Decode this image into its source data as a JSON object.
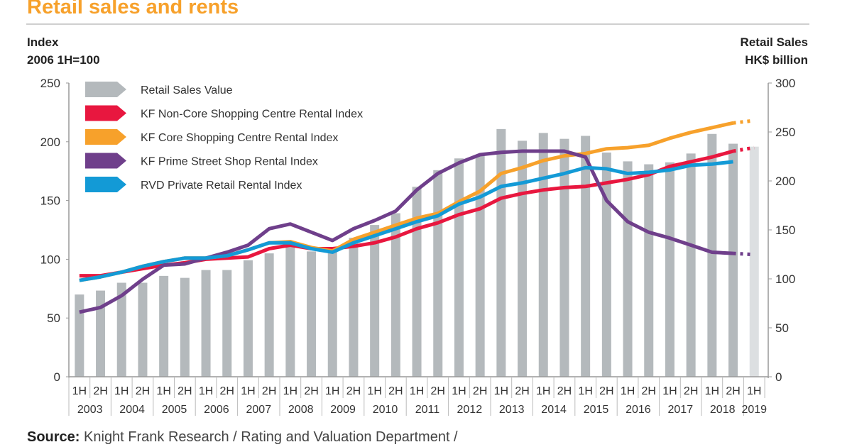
{
  "header": {
    "title": "Retail sales and rents",
    "left_axis_label_line1": "Index",
    "left_axis_label_line2": "2006 1H=100",
    "right_axis_label_line1": "Retail Sales",
    "right_axis_label_line2": "HK$ billion"
  },
  "footer": {
    "source_label": "Source:",
    "source_text": "Knight Frank Research / Rating and Valuation Department /"
  },
  "chart_data": {
    "type": "bar+line",
    "title": "Retail sales and rents",
    "categories": [
      "1H 2003",
      "2H 2003",
      "1H 2004",
      "2H 2004",
      "1H 2005",
      "2H 2005",
      "1H 2006",
      "2H 2006",
      "1H 2007",
      "2H 2007",
      "1H 2008",
      "2H 2008",
      "1H 2009",
      "2H 2009",
      "1H 2010",
      "2H 2010",
      "1H 2011",
      "2H 2011",
      "1H 2012",
      "2H 2012",
      "1H 2013",
      "2H 2013",
      "1H 2014",
      "2H 2014",
      "1H 2015",
      "2H 2015",
      "1H 2016",
      "2H 2016",
      "1H 2017",
      "2H 2017",
      "1H 2018",
      "2H 2018",
      "1H 2019"
    ],
    "half_labels": [
      "1H",
      "2H"
    ],
    "years": [
      "2003",
      "2004",
      "2005",
      "2006",
      "2007",
      "2008",
      "2009",
      "2010",
      "2011",
      "2012",
      "2013",
      "2014",
      "2015",
      "2016",
      "2017",
      "2018",
      "2019"
    ],
    "left_axis": {
      "label": "Index 2006 1H=100",
      "ylim": [
        0,
        250
      ],
      "ticks": [
        0,
        50,
        100,
        150,
        200,
        250
      ]
    },
    "right_axis": {
      "label": "Retail Sales HK$ billion",
      "ylim": [
        0,
        300
      ],
      "ticks": [
        0,
        50,
        100,
        150,
        200,
        250,
        300
      ]
    },
    "grid": false,
    "legend_placement": "top-left",
    "bars": {
      "name": "Retail Sales Value",
      "axis": "right",
      "color": "#b4b9bc",
      "forecast_color": "#dcdfe1",
      "values": [
        84,
        88,
        96,
        96,
        103,
        101,
        109,
        109,
        119,
        126,
        133,
        128,
        129,
        142,
        155,
        167,
        194,
        211,
        223,
        227,
        253,
        241,
        249,
        243,
        246,
        229,
        220,
        217,
        219,
        228,
        248,
        238,
        235
      ],
      "forecast_from_index": 32
    },
    "series": [
      {
        "name": "KF Non-Core Shopping Centre Rental Index",
        "color": "#e8173f",
        "axis": "left",
        "values": [
          86,
          86,
          89,
          92,
          95,
          97,
          100,
          101,
          102,
          109,
          112,
          109,
          109,
          111,
          114,
          119,
          126,
          131,
          138,
          143,
          152,
          156,
          159,
          161,
          162,
          165,
          168,
          172,
          179,
          183,
          187,
          192,
          195
        ],
        "projected_from_index": 31
      },
      {
        "name": "KF Core Shopping Centre Rental Index",
        "color": "#f7a12b",
        "axis": "left",
        "values": [
          82,
          85,
          89,
          94,
          98,
          101,
          101,
          103,
          108,
          114,
          115,
          110,
          107,
          117,
          123,
          129,
          135,
          139,
          149,
          158,
          173,
          178,
          184,
          188,
          190,
          194,
          195,
          197,
          203,
          208,
          212,
          216,
          218
        ],
        "projected_from_index": 31
      },
      {
        "name": "KF Prime Street Shop Rental Index",
        "color": "#6f3f8b",
        "axis": "left",
        "values": [
          55,
          59,
          69,
          83,
          95,
          96,
          101,
          106,
          112,
          126,
          130,
          123,
          116,
          126,
          133,
          141,
          159,
          173,
          182,
          189,
          191,
          192,
          192,
          192,
          187,
          150,
          132,
          123,
          118,
          112,
          106,
          105,
          104
        ],
        "projected_from_index": 31
      },
      {
        "name": "RVD Private Retail Rental Index",
        "color": "#139ad6",
        "axis": "left",
        "values": [
          82,
          85,
          89,
          94,
          98,
          101,
          101,
          103,
          108,
          114,
          114,
          109,
          106,
          114,
          120,
          126,
          132,
          137,
          147,
          153,
          162,
          165,
          169,
          173,
          178,
          177,
          173,
          174,
          176,
          180,
          181,
          183,
          null
        ]
      }
    ]
  }
}
